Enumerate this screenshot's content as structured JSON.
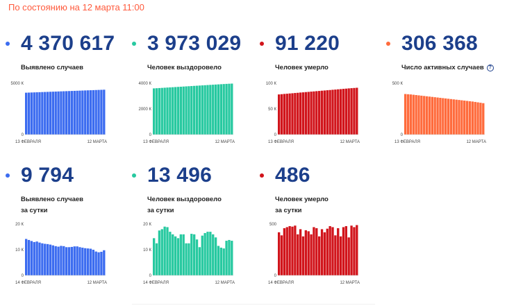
{
  "header": {
    "status_text": "По состоянию на 12 марта 11:00"
  },
  "stats": [
    {
      "number": "4 370 617",
      "label": "Выявлено случаев",
      "label2": "",
      "color": "#3c6cf0",
      "info": false
    },
    {
      "number": "3 973 029",
      "label": "Человек выздоровело",
      "label2": "",
      "color": "#27c9a0",
      "info": false
    },
    {
      "number": "91 220",
      "label": "Человек умерло",
      "label2": "",
      "color": "#d1141b",
      "info": false
    },
    {
      "number": "306 368",
      "label": "Число активных случаев",
      "label2": "",
      "color": "#ff6b3c",
      "info": true
    },
    {
      "number": "9 794",
      "label": "Выявлено случаев",
      "label2": "за сутки",
      "color": "#3c6cf0",
      "info": false
    },
    {
      "number": "13 496",
      "label": "Человек выздоровело",
      "label2": "за сутки",
      "color": "#27c9a0",
      "info": false
    },
    {
      "number": "486",
      "label": "Человек умерло",
      "label2": "за сутки",
      "color": "#d1141b",
      "info": false
    }
  ],
  "chart_data": [
    {
      "type": "bar",
      "title": "Выявлено случаев",
      "x_start_label": "13 ФЕВРАЛЯ",
      "x_end_label": "12 МАРТА",
      "yticks": [
        0,
        5000
      ],
      "ytick_labels": [
        "0",
        "5000 К"
      ],
      "ylim": [
        0,
        5000
      ],
      "values": [
        4080,
        4090,
        4100,
        4110,
        4120,
        4130,
        4140,
        4150,
        4160,
        4170,
        4180,
        4190,
        4200,
        4210,
        4220,
        4230,
        4240,
        4250,
        4260,
        4270,
        4280,
        4290,
        4300,
        4310,
        4320,
        4330,
        4340,
        4350,
        4361,
        4371
      ],
      "color": "#3c6cf0"
    },
    {
      "type": "bar",
      "title": "Человек выздоровело",
      "x_start_label": "13 ФЕВРАЛЯ",
      "x_end_label": "12 МАРТА",
      "yticks": [
        0,
        2000,
        4000
      ],
      "ytick_labels": [
        "0",
        "2000 К",
        "4000 К"
      ],
      "ylim": [
        0,
        4000
      ],
      "values": [
        3600,
        3613,
        3626,
        3639,
        3652,
        3665,
        3678,
        3691,
        3704,
        3717,
        3730,
        3743,
        3756,
        3769,
        3782,
        3795,
        3808,
        3821,
        3834,
        3847,
        3860,
        3873,
        3886,
        3899,
        3912,
        3925,
        3938,
        3951,
        3962,
        3973
      ],
      "color": "#27c9a0"
    },
    {
      "type": "bar",
      "title": "Человек умерло",
      "x_start_label": "13 ФЕВРАЛЯ",
      "x_end_label": "12 МАРТА",
      "yticks": [
        0,
        50,
        100
      ],
      "ytick_labels": [
        "0",
        "50 К",
        "100 К"
      ],
      "ylim": [
        0,
        100
      ],
      "values": [
        78.2,
        78.7,
        79.2,
        79.6,
        80.1,
        80.5,
        81.0,
        81.4,
        81.9,
        82.3,
        82.8,
        83.2,
        83.7,
        84.1,
        84.6,
        85.0,
        85.5,
        85.9,
        86.4,
        86.8,
        87.3,
        87.7,
        88.2,
        88.6,
        89.1,
        89.5,
        90.0,
        90.4,
        90.8,
        91.2
      ],
      "color": "#d1141b"
    },
    {
      "type": "bar",
      "title": "Число активных случаев",
      "x_start_label": "13 ФЕВРАЛЯ",
      "x_end_label": "12 МАРТА",
      "yticks": [
        0,
        500
      ],
      "ytick_labels": [
        "0",
        "500 К"
      ],
      "ylim": [
        0,
        500
      ],
      "values": [
        395,
        393,
        391,
        388,
        385,
        382,
        379,
        376,
        373,
        370,
        367,
        364,
        361,
        358,
        355,
        352,
        349,
        346,
        343,
        340,
        337,
        334,
        331,
        328,
        325,
        322,
        318,
        314,
        310,
        306
      ],
      "color": "#ff6b3c"
    },
    {
      "type": "bar",
      "title": "Выявлено случаев за сутки",
      "x_start_label": "14 ФЕВРАЛЯ",
      "x_end_label": "12 МАРТА",
      "yticks": [
        0,
        10,
        20
      ],
      "ytick_labels": [
        "0",
        "10 К",
        "20 К"
      ],
      "ylim": [
        0,
        20
      ],
      "values": [
        14.2,
        13.8,
        13.4,
        13.0,
        13.2,
        12.8,
        12.5,
        12.3,
        12.2,
        12.0,
        11.7,
        11.4,
        11.2,
        11.5,
        11.4,
        11.0,
        11.0,
        11.1,
        11.3,
        11.3,
        11.0,
        10.8,
        10.6,
        10.5,
        10.4,
        10.0,
        9.3,
        9.0,
        9.2,
        9.8
      ],
      "color": "#3c6cf0"
    },
    {
      "type": "bar",
      "title": "Человек выздоровело за сутки",
      "x_start_label": "14 ФЕВРАЛЯ",
      "x_end_label": "12 МАРТА",
      "yticks": [
        0,
        10,
        20
      ],
      "ytick_labels": [
        "0",
        "10 К",
        "20 К"
      ],
      "ylim": [
        0,
        20
      ],
      "values": [
        14.5,
        12.5,
        17.5,
        18.0,
        19.0,
        18.8,
        17.0,
        16.0,
        15.2,
        14.5,
        16.0,
        16.0,
        12.5,
        12.5,
        16.2,
        16.0,
        14.0,
        11.0,
        15.5,
        16.5,
        17.0,
        17.0,
        16.0,
        14.8,
        11.5,
        10.8,
        10.5,
        13.5,
        13.8,
        13.5
      ],
      "color": "#27c9a0"
    },
    {
      "type": "bar",
      "title": "Человек умерло за сутки",
      "x_start_label": "14 ФЕВРАЛЯ",
      "x_end_label": "12 МАРТА",
      "yticks": [
        0,
        500
      ],
      "ytick_labels": [
        "0",
        "500"
      ],
      "ylim": [
        0,
        500
      ],
      "values": [
        420,
        390,
        460,
        470,
        480,
        475,
        485,
        400,
        450,
        380,
        440,
        430,
        400,
        470,
        460,
        380,
        450,
        420,
        455,
        480,
        470,
        390,
        460,
        380,
        470,
        480,
        370,
        485,
        470,
        490
      ],
      "color": "#d1141b"
    }
  ]
}
